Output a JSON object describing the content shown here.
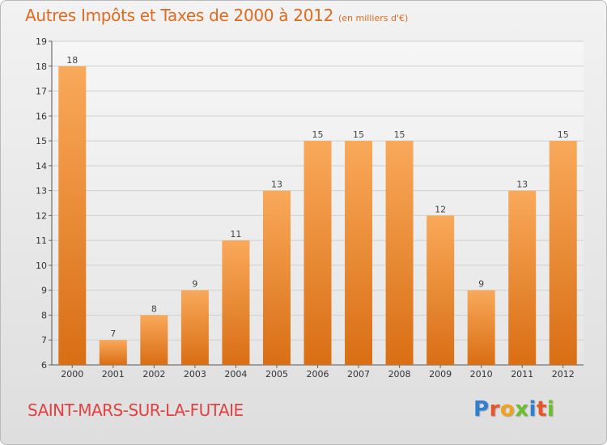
{
  "header": {
    "title": "Autres Impôts et Taxes de 2000 à 2012",
    "unit": "(en milliers d'€)"
  },
  "footer": {
    "place": "SAINT-MARS-SUR-LA-FUTAIE",
    "logo_letters": [
      "P",
      "r",
      "o",
      "x",
      "i",
      "t",
      "i"
    ],
    "logo_colors": [
      "#2f7fd0",
      "#e8542a",
      "#f2a11e",
      "#6cbf2c",
      "#2f7fd0",
      "#e8542a",
      "#6cbf2c"
    ]
  },
  "colors": {
    "bar_light": "#f9a95a",
    "bar_dark": "#d96e14",
    "title": "#e06a1e",
    "place": "#e04242"
  },
  "chart_data": {
    "type": "bar",
    "title": "Autres Impôts et Taxes de 2000 à 2012",
    "categories": [
      "2000",
      "2001",
      "2002",
      "2003",
      "2004",
      "2005",
      "2006",
      "2007",
      "2008",
      "2009",
      "2010",
      "2011",
      "2012"
    ],
    "values": [
      18,
      7,
      8,
      9,
      11,
      13,
      15,
      15,
      15,
      12,
      9,
      13,
      15
    ],
    "ylim": [
      6,
      19
    ],
    "yticks": [
      6,
      7,
      8,
      9,
      10,
      11,
      12,
      13,
      14,
      15,
      16,
      17,
      18,
      19
    ],
    "grid": true,
    "legend": false
  }
}
